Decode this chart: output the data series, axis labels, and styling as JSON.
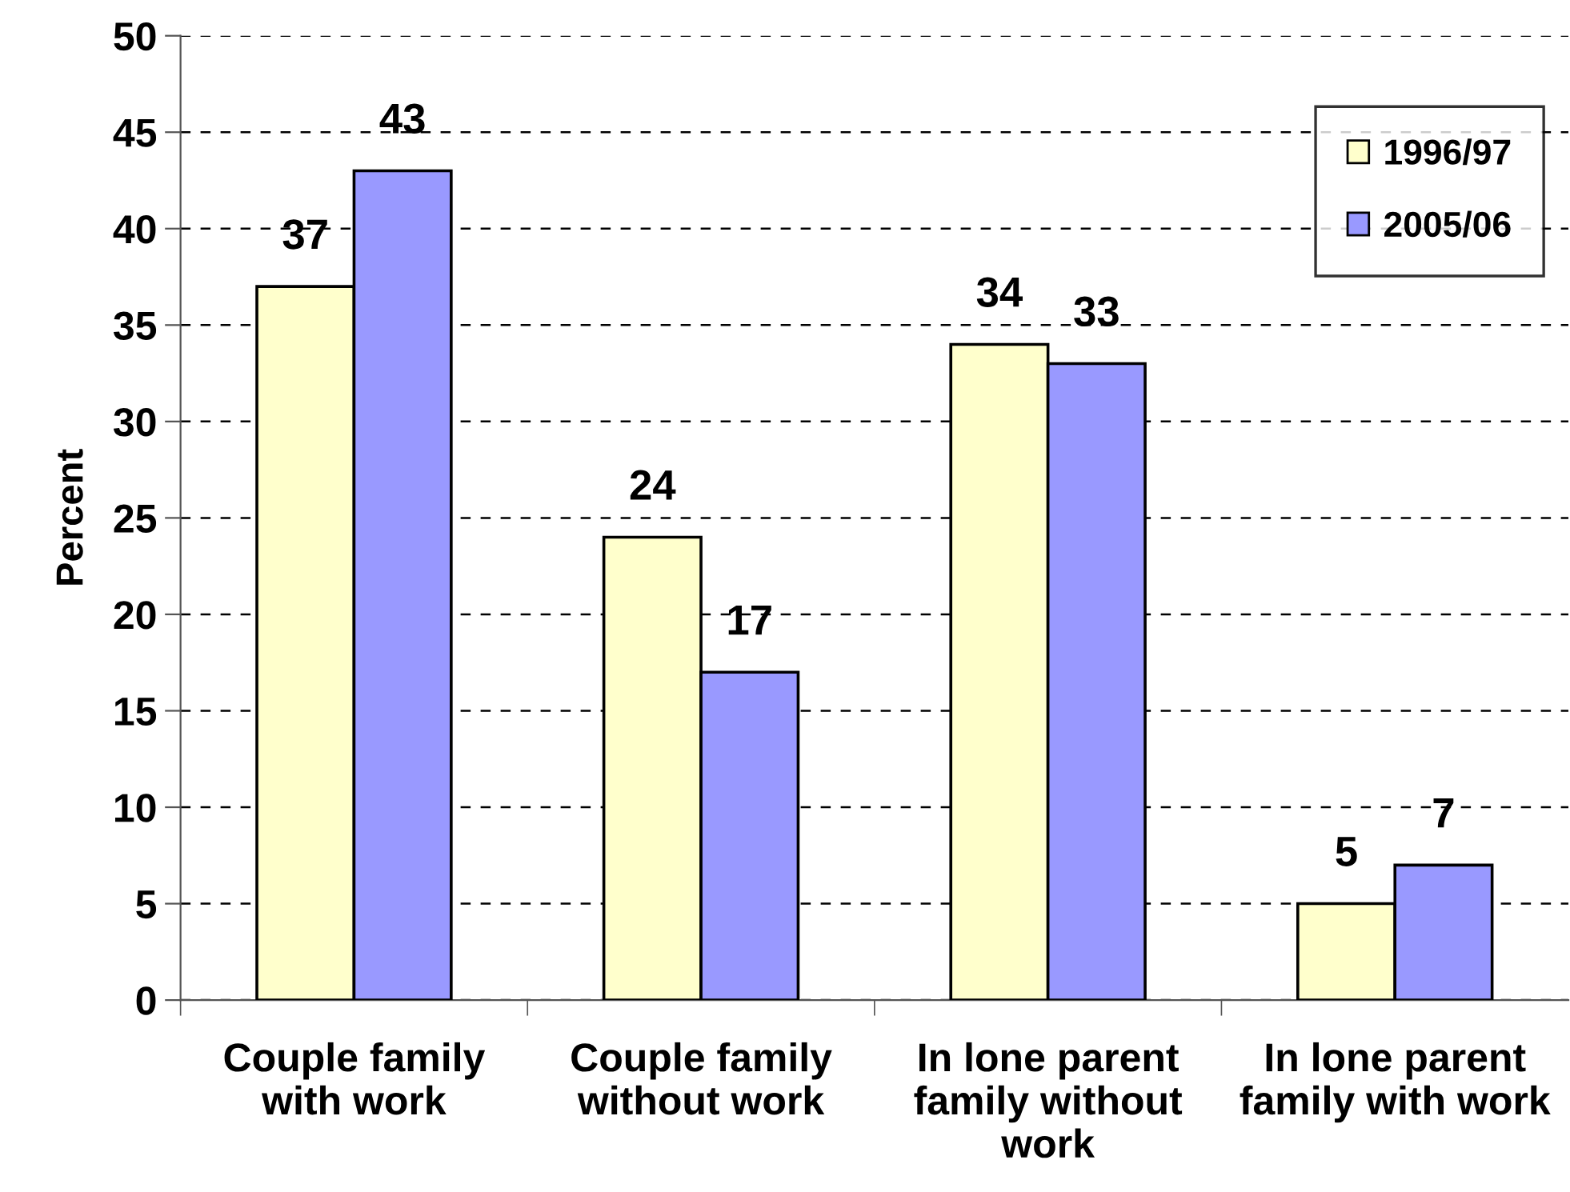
{
  "chart_data": {
    "type": "bar",
    "ylabel": "Percent",
    "categories": [
      "Couple family\nwith work",
      "Couple family\nwithout work",
      "In lone parent\nfamily without\nwork",
      "In lone parent\nfamily with work"
    ],
    "series": [
      {
        "name": "1996/97",
        "color": "#ffffcc",
        "values": [
          37,
          24,
          34,
          5
        ]
      },
      {
        "name": "2005/06",
        "color": "#9999ff",
        "values": [
          43,
          17,
          33,
          7
        ]
      }
    ],
    "ylim": [
      0,
      50
    ],
    "yticks": [
      0,
      5,
      10,
      15,
      20,
      25,
      30,
      35,
      40,
      45,
      50
    ],
    "grid": "y",
    "legend": "top right",
    "data_labels": true
  }
}
